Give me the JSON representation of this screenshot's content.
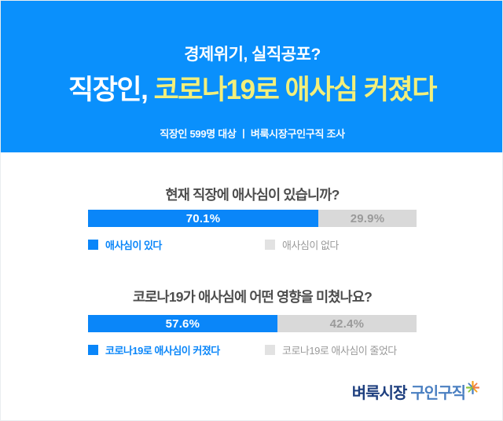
{
  "header": {
    "subtitle": "경제위기, 실직공포?",
    "title_prefix": "직장인, ",
    "title_highlight": "코로나19로 애사심 커졌다",
    "meta": "직장인 599명 대상  ㅣ  벼룩시장구인구직 조사"
  },
  "colors": {
    "header_bg": "#0a90fc",
    "highlight_yellow": "#f2ef7b",
    "bar_blue": "#0a86f9",
    "bar_gray": "#d9d9d9",
    "gray_text": "#9a9a9a",
    "question_text": "#4d4d4d",
    "legend_gray_swatch": "#e2e2e2",
    "logo_navy": "#1e3f7f",
    "logo_blue": "#4a7fc1"
  },
  "chart_data": [
    {
      "type": "bar",
      "title": "현재 직장에 애사심이 있습니까?",
      "unit": "%",
      "categories": [
        "애사심이 있다",
        "애사심이 없다"
      ],
      "values": [
        70.1,
        29.9
      ],
      "segments": [
        {
          "label": "애사심이 있다",
          "value": 70.1,
          "display": "70.1%",
          "color": "#0a86f9",
          "text_color": "#ffffff",
          "swatch_color": "#0a86f9",
          "label_color": "#0a86f9"
        },
        {
          "label": "애사심이 없다",
          "value": 29.9,
          "display": "29.9%",
          "color": "#d9d9d9",
          "text_color": "#9a9a9a",
          "swatch_color": "#e2e2e2",
          "label_color": "#9a9a9a"
        }
      ],
      "legend_position": "bottom"
    },
    {
      "type": "bar",
      "title": "코로나19가 애사심에 어떤 영향을 미쳤나요?",
      "unit": "%",
      "categories": [
        "코로나19로 애사심이 커졌다",
        "코로나19로 애사심이 줄었다"
      ],
      "values": [
        57.6,
        42.4
      ],
      "segments": [
        {
          "label": "코로나19로 애사심이 커졌다",
          "value": 57.6,
          "display": "57.6%",
          "color": "#0a86f9",
          "text_color": "#ffffff",
          "swatch_color": "#0a86f9",
          "label_color": "#0a86f9"
        },
        {
          "label": "코로나19로 애사심이 줄었다",
          "value": 42.4,
          "display": "42.4%",
          "color": "#d9d9d9",
          "text_color": "#9a9a9a",
          "swatch_color": "#e2e2e2",
          "label_color": "#9a9a9a"
        }
      ],
      "legend_position": "bottom"
    }
  ],
  "footer": {
    "logo_primary": "벼룩시장",
    "logo_secondary": "구인구직"
  }
}
